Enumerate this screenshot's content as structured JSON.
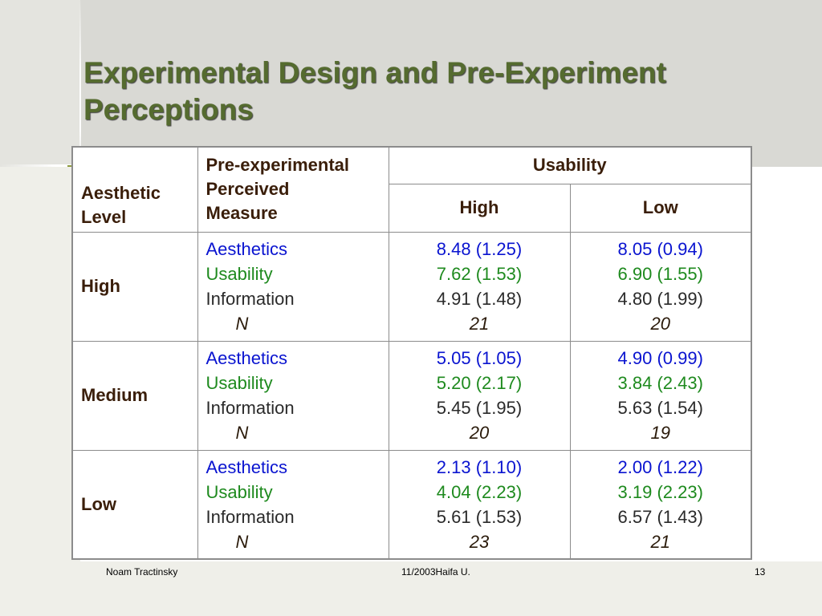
{
  "slide": {
    "title_line1": "Experimental Design and Pre-Experiment",
    "title_line2": "Perceptions",
    "footer_left": "Noam Tractinsky",
    "footer_center": "11/2003Haifa U.",
    "footer_right": "13"
  },
  "table": {
    "header": {
      "aesthetic_level": "Aesthetic Level",
      "measure_line1": "Pre-experimental",
      "measure_line2": "Perceived",
      "measure_line3": "Measure",
      "usability": "Usability",
      "high": "High",
      "low": "Low"
    },
    "measure_labels": {
      "aesthetics": "Aesthetics",
      "usability": "Usability",
      "information": "Information",
      "n": "N"
    },
    "rows": [
      {
        "level": "High",
        "high": {
          "aesthetics": "8.48 (1.25)",
          "usability": "7.62 (1.53)",
          "information": "4.91 (1.48)",
          "n": "21"
        },
        "low": {
          "aesthetics": "8.05 (0.94)",
          "usability": "6.90 (1.55)",
          "information": "4.80 (1.99)",
          "n": "20"
        }
      },
      {
        "level": "Medium",
        "high": {
          "aesthetics": "5.05 (1.05)",
          "usability": "5.20 (2.17)",
          "information": "5.45 (1.95)",
          "n": "20"
        },
        "low": {
          "aesthetics": "4.90 (0.99)",
          "usability": "3.84 (2.43)",
          "information": "5.63 (1.54)",
          "n": "19"
        }
      },
      {
        "level": "Low",
        "high": {
          "aesthetics": "2.13 (1.10)",
          "usability": "4.04 (2.23)",
          "information": "5.61 (1.53)",
          "n": "23"
        },
        "low": {
          "aesthetics": "2.00 (1.22)",
          "usability": "3.19 (2.23)",
          "information": "6.57 (1.43)",
          "n": "21"
        }
      }
    ]
  },
  "colors": {
    "title": "#556b2f",
    "aesthetics": "#0a14d0",
    "usability": "#1e8a1e",
    "information": "#2a2a2a",
    "header_text": "#3a1e0a"
  }
}
